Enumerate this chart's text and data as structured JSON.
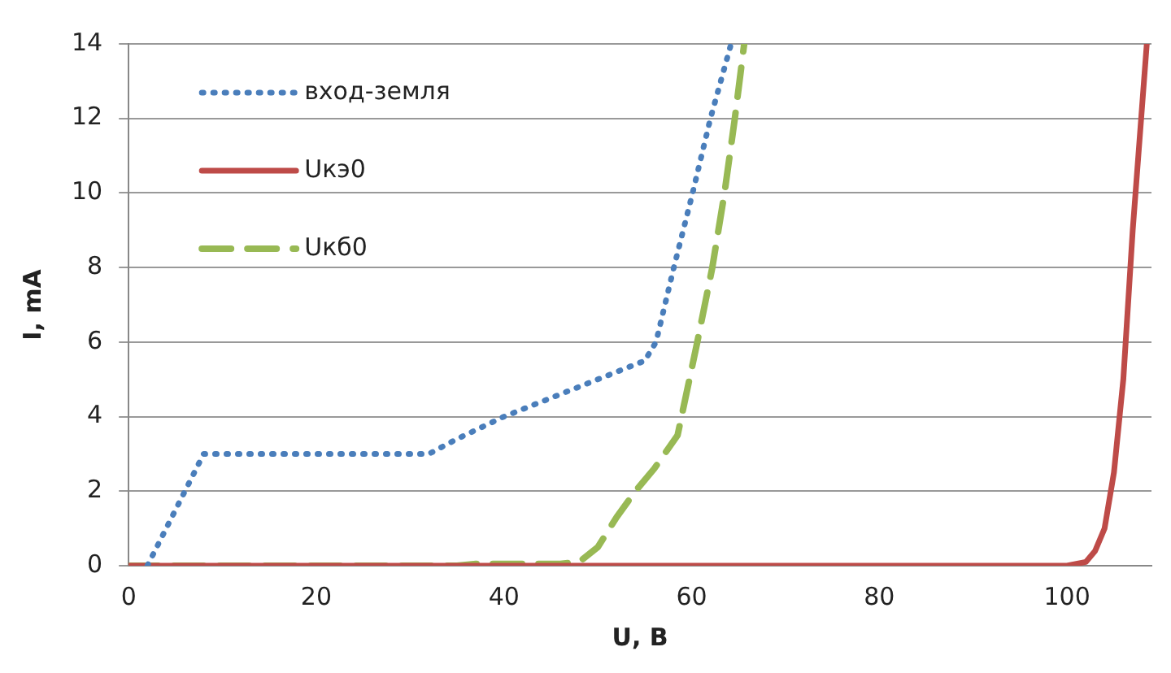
{
  "chart_data": {
    "type": "line",
    "xlabel": "U, B",
    "ylabel": "I, mA",
    "xlim": [
      0,
      109
    ],
    "xticks": [
      0,
      20,
      40,
      60,
      80,
      100
    ],
    "ylim": [
      0,
      14
    ],
    "yticks": [
      0,
      2,
      4,
      6,
      8,
      10,
      12,
      14
    ],
    "grid": "y",
    "legend": "top left",
    "marker": "none",
    "series": [
      {
        "name": "вход-земля",
        "color": "#4a7ebb",
        "line_style": "dotted",
        "x": [
          2,
          8,
          32,
          35,
          40,
          45,
          50,
          55,
          56.2,
          58.1,
          60.1,
          62,
          64.2
        ],
        "values": [
          0,
          3,
          3,
          3.4,
          4,
          4.5,
          5,
          5.5,
          6,
          8,
          10,
          12,
          14
        ]
      },
      {
        "name": "Uкэ0",
        "color": "#be4b48",
        "line_style": "solid",
        "x": [
          0,
          100,
          102,
          103,
          104,
          105,
          106,
          107,
          108.5
        ],
        "values": [
          0,
          0,
          0.1,
          0.4,
          1,
          2.5,
          5,
          9,
          14
        ]
      },
      {
        "name": "Uкб0",
        "color": "#98b954",
        "line_style": "dashed",
        "x": [
          0,
          35,
          37,
          46,
          48,
          50,
          52,
          54,
          56,
          58.5,
          60.6,
          62.2,
          63.5,
          64.6,
          65.6
        ],
        "values": [
          0,
          0,
          0.05,
          0.05,
          0.1,
          0.5,
          1.3,
          2,
          2.6,
          3.5,
          6,
          8,
          10,
          12,
          14
        ]
      }
    ]
  }
}
